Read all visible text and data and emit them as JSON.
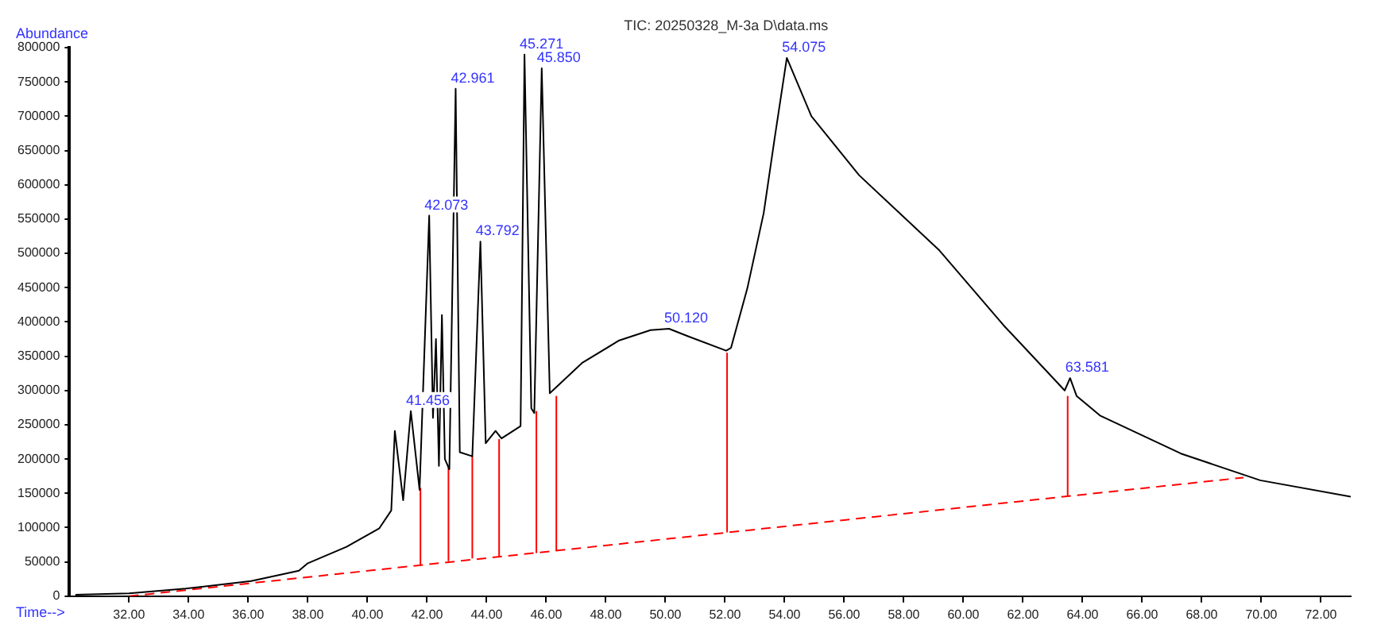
{
  "chart_data": {
    "type": "line",
    "title": "TIC: 20250328_M-3a D\\data.ms",
    "xlabel": "Time-->",
    "ylabel": "Abundance",
    "marker": "none",
    "grid": false,
    "legend": false,
    "xlim": [
      30,
      73
    ],
    "xticks": [
      {
        "value": 32,
        "label": "32.00"
      },
      {
        "value": 34,
        "label": "34.00"
      },
      {
        "value": 36,
        "label": "36.00"
      },
      {
        "value": 38,
        "label": "38.00"
      },
      {
        "value": 40,
        "label": "40.00"
      },
      {
        "value": 42,
        "label": "42.00"
      },
      {
        "value": 44,
        "label": "44.00"
      },
      {
        "value": 46,
        "label": "46.00"
      },
      {
        "value": 48,
        "label": "48.00"
      },
      {
        "value": 50,
        "label": "50.00"
      },
      {
        "value": 52,
        "label": "52.00"
      },
      {
        "value": 54,
        "label": "54.00"
      },
      {
        "value": 56,
        "label": "56.00"
      },
      {
        "value": 58,
        "label": "58.00"
      },
      {
        "value": 60,
        "label": "60.00"
      },
      {
        "value": 62,
        "label": "62.00"
      },
      {
        "value": 64,
        "label": "64.00"
      },
      {
        "value": 66,
        "label": "66.00"
      },
      {
        "value": 68,
        "label": "68.00"
      },
      {
        "value": 70,
        "label": "70.00"
      },
      {
        "value": 72,
        "label": "72.00"
      }
    ],
    "ylim": [
      0,
      800000
    ],
    "yticks": [
      0,
      50000,
      100000,
      150000,
      200000,
      250000,
      300000,
      350000,
      400000,
      450000,
      500000,
      550000,
      600000,
      650000,
      700000,
      750000,
      800000
    ],
    "series": [
      {
        "color": "#000000",
        "line_style": "solid",
        "x": [
          30.2,
          32,
          33.9,
          36.1,
          37.7,
          38,
          39.3,
          40.4,
          40.8,
          40.92,
          41.2,
          41.456,
          41.75,
          42.073,
          42.2,
          42.3,
          42.4,
          42.5,
          42.6,
          42.75,
          42.961,
          43.1,
          43.52,
          43.792,
          43.97,
          44.3,
          44.5,
          45.14,
          45.271,
          45.5,
          45.6,
          45.85,
          46.12,
          47.2,
          48.45,
          49.5,
          50.12,
          50.76,
          52.04,
          52.2,
          52.75,
          53.3,
          53.67,
          54.075,
          54.9,
          56.5,
          59.2,
          61.35,
          63.4,
          63.581,
          63.8,
          64.6,
          67.3,
          69.96,
          73
        ],
        "values": [
          2000,
          4000,
          11000,
          22000,
          37000,
          48000,
          72000,
          99000,
          125000,
          241000,
          140000,
          270000,
          155000,
          555000,
          260000,
          375000,
          190000,
          410000,
          200000,
          185000,
          740000,
          210000,
          204000,
          517000,
          223000,
          241000,
          230000,
          248000,
          790000,
          274000,
          267000,
          770000,
          296000,
          340000,
          373000,
          388000,
          390000,
          379000,
          358000,
          362000,
          449000,
          559000,
          669000,
          785000,
          700000,
          614000,
          504000,
          395000,
          300000,
          318000,
          292000,
          263000,
          208000,
          169000,
          145000
        ]
      },
      {
        "color": "#ff0000",
        "line_style": "dashed",
        "x": [
          32,
          69.4
        ],
        "values": [
          0,
          173000
        ]
      },
      {
        "color": "#ff0000",
        "line_style": "solid",
        "x": [
          41.78,
          41.78
        ],
        "values": [
          46000,
          158000
        ]
      },
      {
        "color": "#ff0000",
        "line_style": "solid",
        "x": [
          42.72,
          42.72
        ],
        "values": [
          51000,
          190000
        ]
      },
      {
        "color": "#ff0000",
        "line_style": "solid",
        "x": [
          43.52,
          43.52
        ],
        "values": [
          55000,
          204000
        ]
      },
      {
        "color": "#ff0000",
        "line_style": "solid",
        "x": [
          44.42,
          44.42
        ],
        "values": [
          58000,
          229000
        ]
      },
      {
        "color": "#ff0000",
        "line_style": "solid",
        "x": [
          45.67,
          45.67
        ],
        "values": [
          63000,
          270000
        ]
      },
      {
        "color": "#ff0000",
        "line_style": "solid",
        "x": [
          46.34,
          46.34
        ],
        "values": [
          66000,
          292000
        ]
      },
      {
        "color": "#ff0000",
        "line_style": "solid",
        "x": [
          52.07,
          52.07
        ],
        "values": [
          93000,
          355000
        ]
      },
      {
        "color": "#ff0000",
        "line_style": "solid",
        "x": [
          63.5,
          63.5
        ],
        "values": [
          146000,
          292000
        ]
      }
    ],
    "annotations": [
      {
        "text": "41.456",
        "x": 41.456,
        "y": 270000
      },
      {
        "text": "42.073",
        "x": 42.073,
        "y": 555000
      },
      {
        "text": "42.961",
        "x": 42.961,
        "y": 740000
      },
      {
        "text": "43.792",
        "x": 43.792,
        "y": 517000
      },
      {
        "text": "45.271",
        "x": 45.271,
        "y": 790000
      },
      {
        "text": "45.850",
        "x": 45.85,
        "y": 770000
      },
      {
        "text": "50.120",
        "x": 50.12,
        "y": 390000
      },
      {
        "text": "54.075",
        "x": 54.075,
        "y": 785000
      },
      {
        "text": "63.581",
        "x": 63.581,
        "y": 318000
      }
    ]
  }
}
